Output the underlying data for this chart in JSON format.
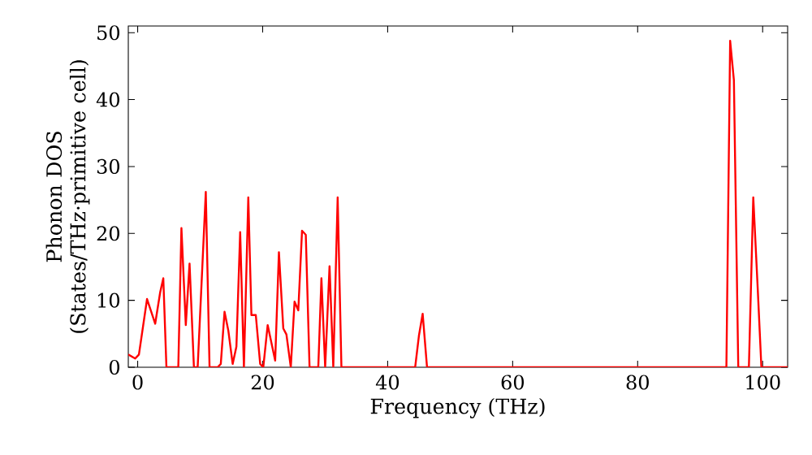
{
  "chart_data": {
    "type": "line",
    "xlabel": "Frequency (THz)",
    "ylabel": "Phonon DOS (States/THz·primitive cell)",
    "xlim": [
      -1.5,
      104
    ],
    "ylim": [
      0,
      51
    ],
    "xticks": [
      0,
      20,
      40,
      60,
      80,
      100
    ],
    "yticks": [
      0,
      10,
      20,
      30,
      40,
      50
    ],
    "marker": "none",
    "line_style": "solid",
    "series": [
      {
        "color": "#ff0000",
        "x": [
          -1.5,
          -0.4,
          0.2,
          1.5,
          2.8,
          3.6,
          4.1,
          4.6,
          6.5,
          7.0,
          7.7,
          8.3,
          9.0,
          9.6,
          10.9,
          11.5,
          12.8,
          13.3,
          13.9,
          14.5,
          15.2,
          15.8,
          16.4,
          17.0,
          17.7,
          18.2,
          18.9,
          19.6,
          20.1,
          20.8,
          22.0,
          22.6,
          23.3,
          23.8,
          24.5,
          25.1,
          25.7,
          26.3,
          26.9,
          27.5,
          28.9,
          29.4,
          30.0,
          30.7,
          31.3,
          32.0,
          32.6,
          44.4,
          45.0,
          45.6,
          46.3,
          94.2,
          94.8,
          95.4,
          96.1,
          97.8,
          98.5,
          99.2,
          99.8,
          104
        ],
        "values": [
          1.9,
          1.3,
          1.9,
          10.2,
          6.5,
          11.2,
          13.3,
          0,
          0,
          20.8,
          6.3,
          15.5,
          0,
          0,
          26.2,
          0,
          0,
          0.5,
          8.3,
          5.5,
          0.5,
          3.1,
          20.2,
          0,
          25.4,
          7.8,
          7.8,
          0.5,
          0,
          6.3,
          1.0,
          17.2,
          5.8,
          4.9,
          0,
          9.8,
          8.5,
          20.4,
          19.8,
          0,
          0,
          13.3,
          0,
          15.1,
          0,
          25.4,
          0,
          0,
          4.7,
          8.0,
          0,
          0,
          48.8,
          42.9,
          0,
          0,
          25.4,
          12.0,
          0,
          0
        ]
      }
    ]
  }
}
